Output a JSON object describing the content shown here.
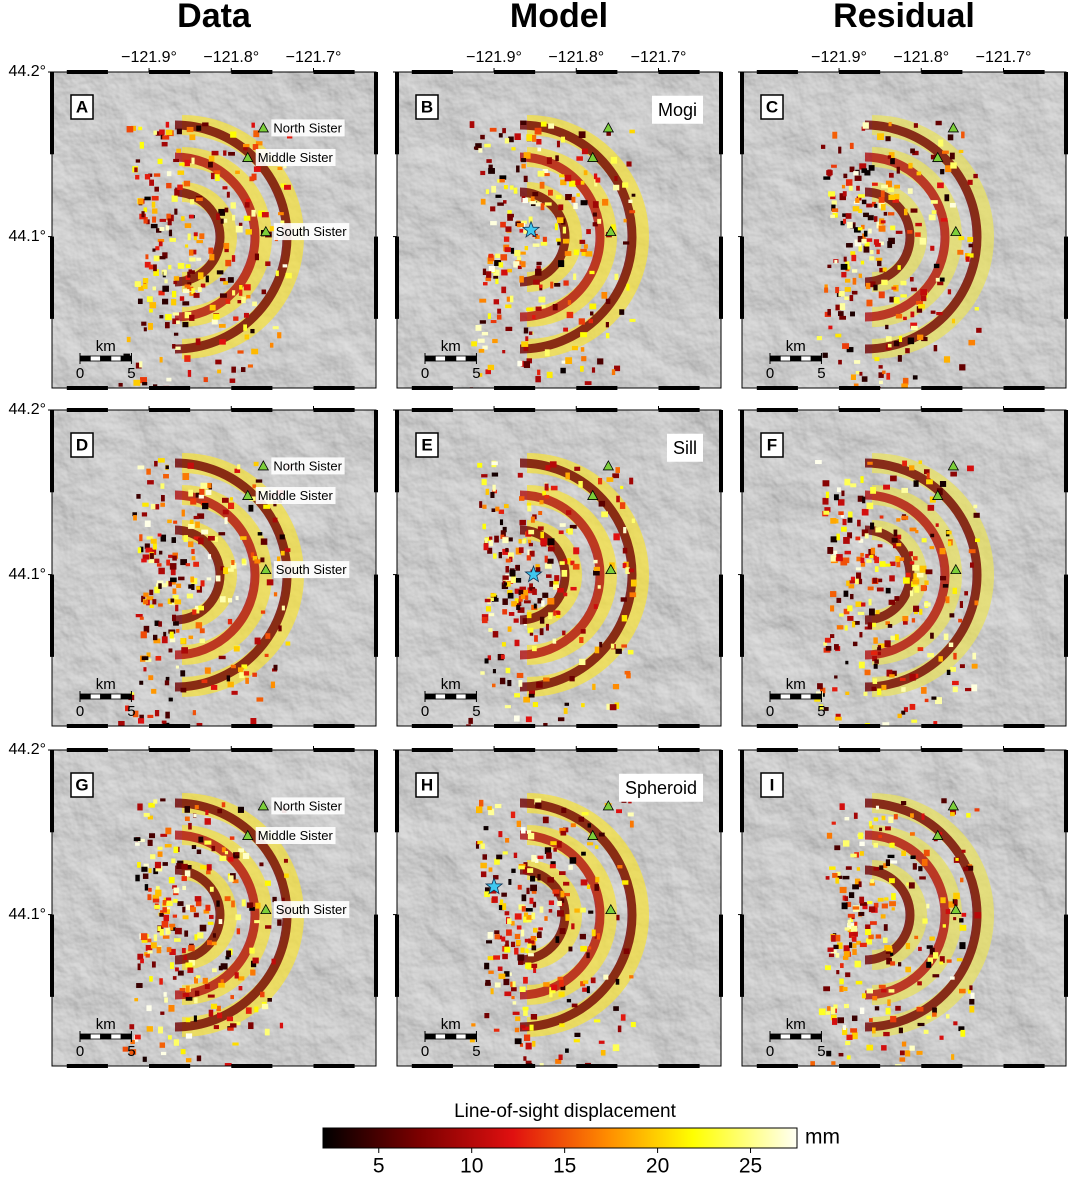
{
  "columns": [
    "Data",
    "Model",
    "Residual"
  ],
  "map": {
    "xlim": [
      -122.018,
      -121.624
    ],
    "ylim": [
      44.008,
      44.2
    ],
    "xticks": [
      {
        "value": -121.9,
        "label": "−121.9°"
      },
      {
        "value": -121.8,
        "label": "−121.8°"
      },
      {
        "value": -121.7,
        "label": "−121.7°"
      }
    ],
    "yticks": [
      {
        "value": 44.1,
        "label": "44.1°"
      },
      {
        "value": 44.2,
        "label": "44.2°"
      }
    ]
  },
  "volcanoes": [
    {
      "name": "North Sister",
      "lon": -121.761,
      "lat": 44.166
    },
    {
      "name": "Middle Sister",
      "lon": -121.78,
      "lat": 44.148
    },
    {
      "name": "South Sister",
      "lon": -121.758,
      "lat": 44.103
    }
  ],
  "panels": [
    {
      "letter": "A"
    },
    {
      "letter": "B",
      "model": "Mogi",
      "source": {
        "lon": -121.855,
        "lat": 44.104
      }
    },
    {
      "letter": "C"
    },
    {
      "letter": "D"
    },
    {
      "letter": "E",
      "model": "Sill",
      "source": {
        "lon": -121.852,
        "lat": 44.1
      }
    },
    {
      "letter": "F"
    },
    {
      "letter": "G"
    },
    {
      "letter": "H",
      "model": "Spheroid",
      "source": {
        "lon": -121.9,
        "lat": 44.117
      }
    },
    {
      "letter": "I"
    }
  ],
  "scale_bar": {
    "unit": "km",
    "ticks": [
      0,
      5
    ]
  },
  "colorbar": {
    "label": "Line-of-sight displacement",
    "unit": "mm",
    "lim": [
      2,
      27.5
    ],
    "ticks": [
      5,
      10,
      15,
      20,
      25
    ]
  }
}
